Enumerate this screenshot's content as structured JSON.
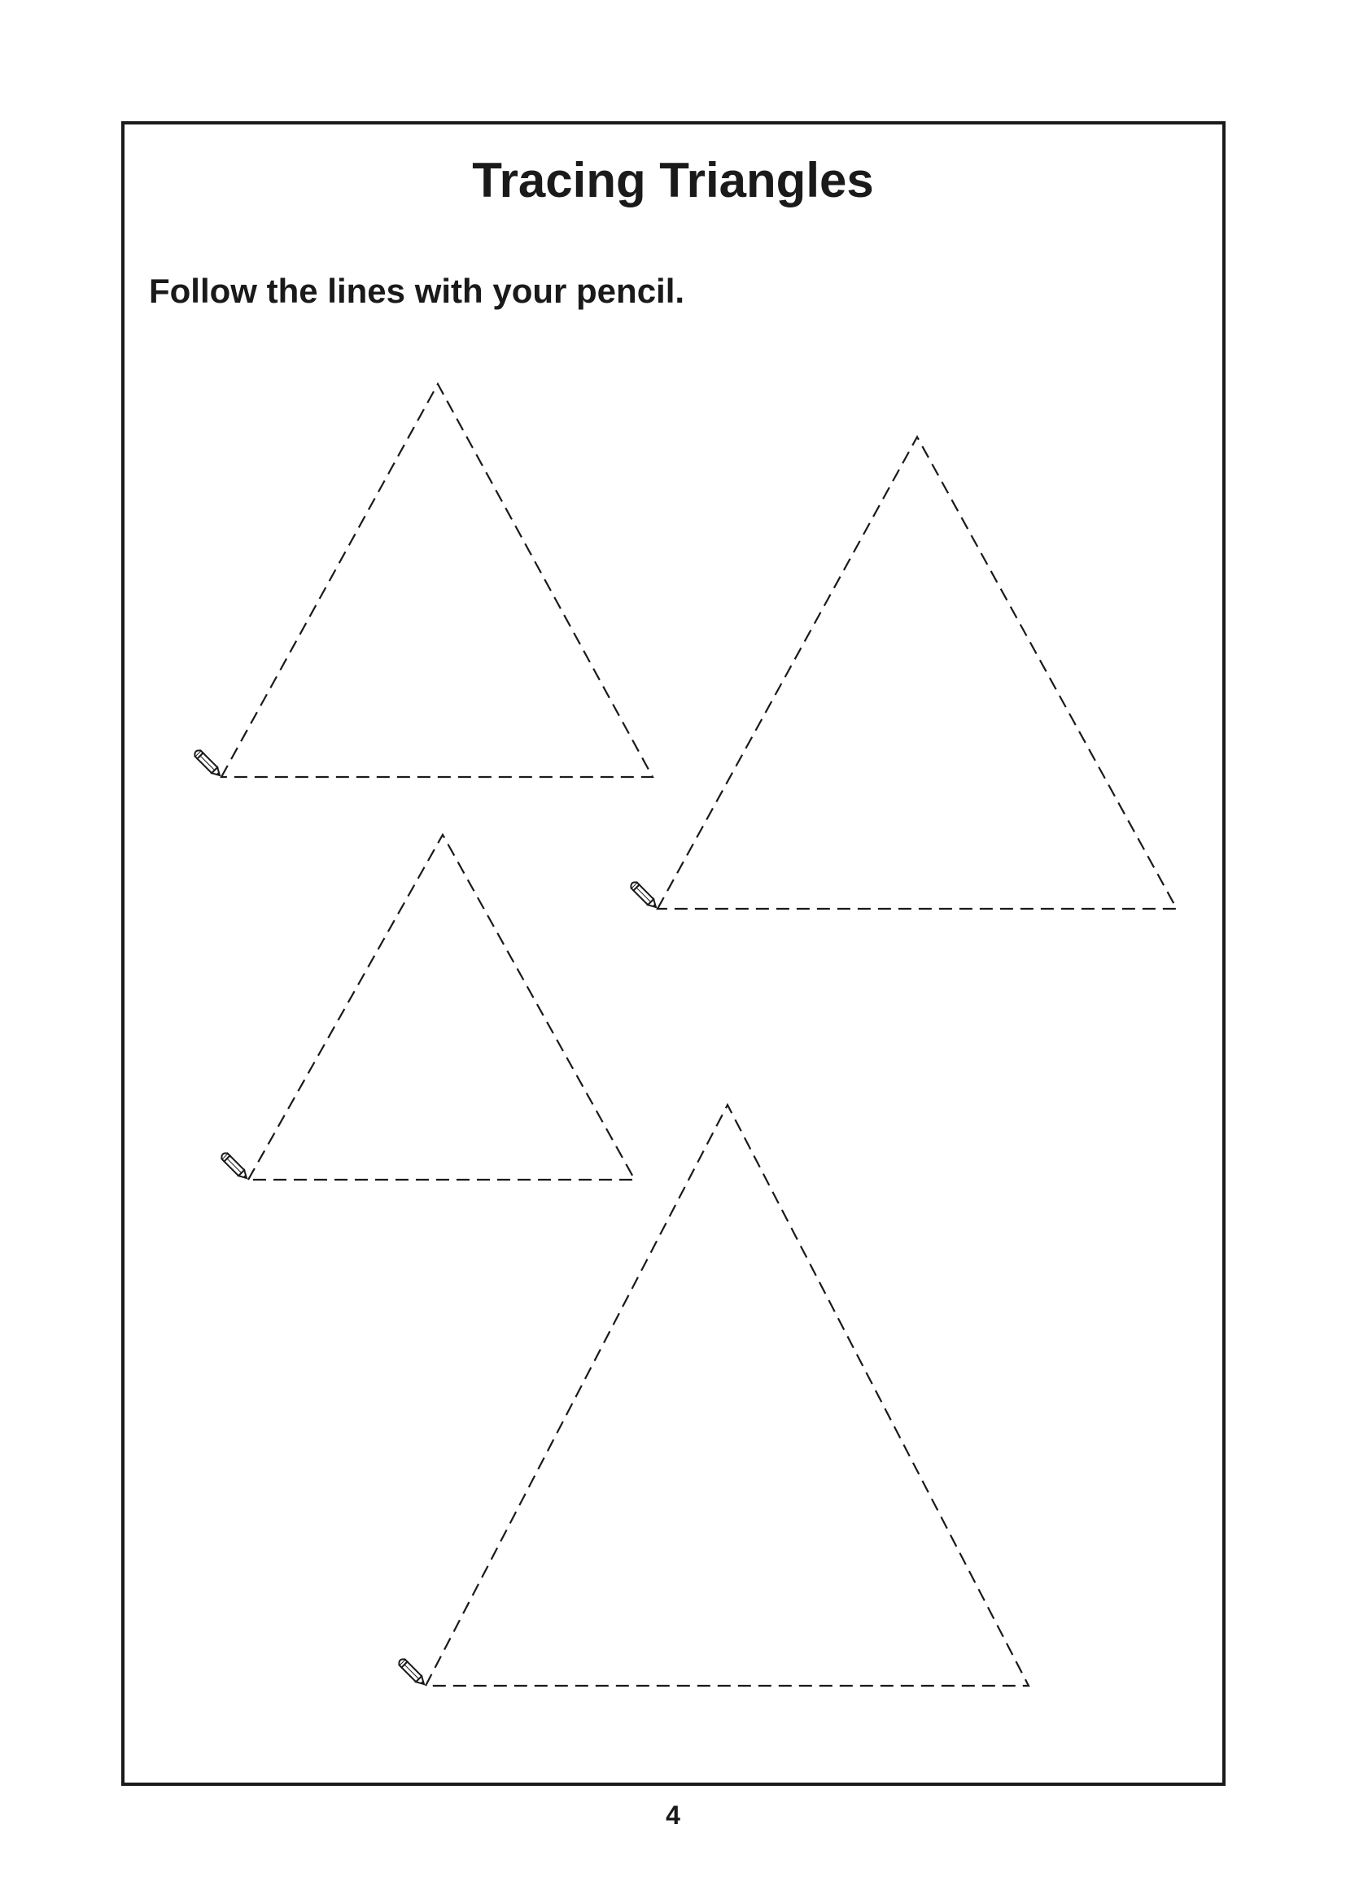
{
  "worksheet": {
    "title": "Tracing Triangles",
    "instruction": "Follow the lines with your pencil.",
    "page_number": "4",
    "triangle_count": 4,
    "start_marker_icon": "pencil-icon",
    "line_style": "dashed",
    "line_color": "#1a1a1a"
  }
}
